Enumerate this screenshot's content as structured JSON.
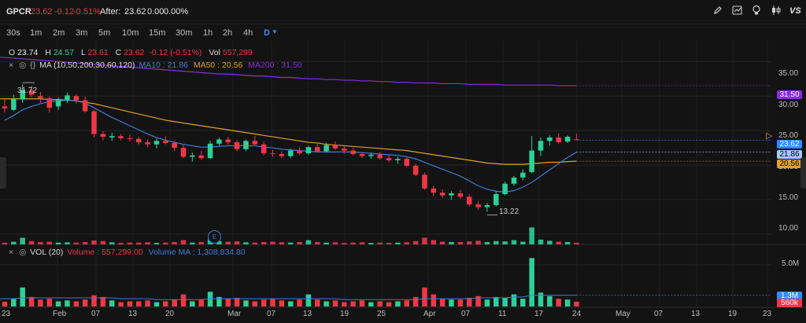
{
  "header": {
    "ticker": "GPCR",
    "last": "23.62",
    "change": "-0.12",
    "change_pct": "-0.51%",
    "after_label": "After:",
    "after_price": "23.62",
    "after_change": "0.00",
    "after_pct": "0.00%"
  },
  "toolbar_icons": [
    "pencil-icon",
    "chart-icon",
    "bulb-icon",
    "candle-icon",
    "vs-icon"
  ],
  "vs_label": "VS",
  "timeframes": [
    "30s",
    "1m",
    "2m",
    "3m",
    "5m",
    "10m",
    "15m",
    "30m",
    "1h",
    "2h",
    "4h",
    "D"
  ],
  "active_timeframe": "D",
  "ohlc": {
    "o_label": "O",
    "o": "23.74",
    "h_label": "H",
    "h": "24.57",
    "l_label": "L",
    "l": "23.61",
    "c_label": "C",
    "c": "23.62",
    "chg": "-0.12 (-0.51%)",
    "vol_label": "Vol",
    "vol": "557,299"
  },
  "ma_legend": {
    "label": "MA (10,50,200,30,60,120)",
    "ma10": "MA10 : 21.86",
    "ma50": "MA50 : 20.56",
    "ma200": "MA200 : 31.50"
  },
  "vol_legend": {
    "label": "VOL (20)",
    "volume": "Volume : 557,299.00",
    "volume_ma": "Volume MA : 1,308,834.80"
  },
  "price_axis": [
    "35.00",
    "30.00",
    "25.00",
    "20.00",
    "15.00",
    "10.00"
  ],
  "price_tags": {
    "ma200": "31.50",
    "last": "23.62",
    "ma10": "21.86",
    "ma50": "20.56"
  },
  "vol_axis": [
    "5.0M"
  ],
  "vol_tags": {
    "ma": "1.3M",
    "vol": "560k"
  },
  "annotations": {
    "high": "31.72",
    "low": "13.22",
    "earnings": "E"
  },
  "x_axis": [
    "23",
    "Feb",
    "07",
    "13",
    "20",
    "Mar",
    "07",
    "13",
    "19",
    "25",
    "Apr",
    "07",
    "11",
    "17",
    "24",
    "May",
    "07",
    "13",
    "19",
    "23"
  ],
  "colors": {
    "up": "#2bd19a",
    "down": "#f23645",
    "ma10": "#3d7bd9",
    "ma50": "#e0a02a",
    "ma200": "#8a2be2",
    "accent": "#2e8cff"
  },
  "chart_data": {
    "type": "candlestick",
    "x_dates": [
      "Jan-23",
      "Jan-24",
      "Jan-27",
      "Jan-28",
      "Jan-29",
      "Jan-30",
      "Jan-31",
      "Feb-03",
      "Feb-04",
      "Feb-05",
      "Feb-06",
      "Feb-07",
      "Feb-10",
      "Feb-11",
      "Feb-12",
      "Feb-13",
      "Feb-14",
      "Feb-18",
      "Feb-19",
      "Feb-20",
      "Feb-21",
      "Feb-24",
      "Feb-25",
      "Feb-26",
      "Feb-27",
      "Feb-28",
      "Mar-03",
      "Mar-04",
      "Mar-05",
      "Mar-06",
      "Mar-07",
      "Mar-10",
      "Mar-11",
      "Mar-12",
      "Mar-13",
      "Mar-14",
      "Mar-17",
      "Mar-18",
      "Mar-19",
      "Mar-20",
      "Mar-21",
      "Mar-24",
      "Mar-25",
      "Mar-26",
      "Mar-27",
      "Mar-28",
      "Mar-31",
      "Apr-01",
      "Apr-02",
      "Apr-03",
      "Apr-04",
      "Apr-07",
      "Apr-08",
      "Apr-09",
      "Apr-10",
      "Apr-11",
      "Apr-14",
      "Apr-15",
      "Apr-16",
      "Apr-17",
      "Apr-21",
      "Apr-22",
      "Apr-23",
      "Apr-24",
      "Apr-25"
    ],
    "ohlc": [
      [
        28.5,
        29.5,
        27.6,
        28.2
      ],
      [
        28.0,
        30.2,
        27.8,
        29.6
      ],
      [
        29.5,
        31.72,
        29.0,
        30.9
      ],
      [
        30.8,
        31.5,
        29.8,
        30.2
      ],
      [
        30.0,
        30.6,
        29.0,
        29.7
      ],
      [
        29.7,
        29.9,
        27.6,
        28.3
      ],
      [
        28.5,
        29.8,
        28.0,
        29.4
      ],
      [
        29.4,
        30.5,
        29.0,
        30.1
      ],
      [
        30.0,
        30.3,
        28.9,
        29.4
      ],
      [
        29.4,
        29.9,
        27.6,
        27.8
      ],
      [
        27.8,
        28.0,
        24.0,
        24.5
      ],
      [
        24.5,
        24.9,
        23.6,
        24.1
      ],
      [
        24.0,
        24.7,
        23.5,
        24.2
      ],
      [
        24.2,
        24.5,
        23.6,
        23.9
      ],
      [
        23.9,
        24.4,
        23.4,
        23.8
      ],
      [
        23.8,
        24.1,
        23.0,
        23.3
      ],
      [
        23.3,
        23.7,
        22.6,
        23.0
      ],
      [
        23.0,
        23.9,
        22.4,
        23.5
      ],
      [
        23.5,
        24.2,
        23.0,
        23.2
      ],
      [
        23.2,
        23.5,
        22.0,
        22.5
      ],
      [
        22.5,
        23.0,
        21.0,
        21.2
      ],
      [
        21.2,
        21.8,
        20.5,
        21.4
      ],
      [
        21.4,
        22.1,
        20.8,
        21.0
      ],
      [
        21.0,
        23.5,
        20.9,
        23.1
      ],
      [
        23.1,
        24.0,
        22.8,
        23.7
      ],
      [
        23.7,
        24.1,
        23.0,
        23.3
      ],
      [
        23.3,
        23.6,
        22.0,
        22.3
      ],
      [
        22.3,
        23.7,
        22.0,
        23.5
      ],
      [
        23.5,
        24.2,
        22.9,
        23.0
      ],
      [
        23.0,
        23.4,
        21.4,
        21.7
      ],
      [
        21.7,
        22.2,
        21.2,
        21.6
      ],
      [
        21.6,
        22.0,
        21.0,
        21.3
      ],
      [
        21.3,
        22.4,
        21.0,
        22.1
      ],
      [
        22.1,
        22.6,
        21.5,
        21.7
      ],
      [
        21.7,
        22.8,
        21.5,
        22.6
      ],
      [
        22.6,
        23.1,
        21.9,
        22.0
      ],
      [
        22.0,
        23.2,
        21.8,
        22.9
      ],
      [
        22.9,
        23.4,
        22.2,
        22.4
      ],
      [
        22.4,
        22.8,
        21.6,
        22.1
      ],
      [
        22.1,
        22.5,
        21.4,
        21.6
      ],
      [
        21.6,
        21.9,
        21.0,
        21.3
      ],
      [
        21.3,
        21.8,
        20.9,
        21.5
      ],
      [
        21.5,
        21.9,
        20.8,
        21.0
      ],
      [
        21.0,
        21.5,
        20.4,
        20.7
      ],
      [
        20.7,
        21.2,
        20.2,
        20.9
      ],
      [
        20.9,
        21.1,
        19.7,
        19.9
      ],
      [
        19.9,
        20.2,
        18.4,
        18.6
      ],
      [
        18.6,
        18.9,
        16.4,
        16.6
      ],
      [
        16.6,
        17.0,
        15.5,
        16.0
      ],
      [
        16.0,
        16.5,
        15.2,
        15.6
      ],
      [
        15.6,
        16.2,
        15.0,
        15.9
      ],
      [
        15.9,
        16.4,
        15.1,
        15.4
      ],
      [
        15.4,
        15.8,
        14.0,
        14.3
      ],
      [
        14.3,
        14.8,
        13.5,
        13.9
      ],
      [
        13.9,
        14.5,
        13.22,
        14.2
      ],
      [
        14.2,
        16.2,
        14.0,
        15.8
      ],
      [
        15.8,
        17.6,
        15.6,
        17.3
      ],
      [
        17.3,
        18.4,
        17.0,
        18.2
      ],
      [
        18.2,
        19.4,
        17.8,
        18.9
      ],
      [
        19.0,
        24.2,
        18.8,
        22.1
      ],
      [
        22.1,
        24.0,
        21.3,
        23.5
      ],
      [
        23.5,
        24.3,
        22.8,
        24.0
      ],
      [
        24.0,
        24.6,
        23.1,
        23.3
      ],
      [
        23.4,
        24.3,
        23.2,
        24.1
      ],
      [
        23.74,
        24.57,
        23.61,
        23.62
      ]
    ],
    "volume_millions": [
      0.55,
      0.9,
      2.2,
      1.1,
      0.8,
      0.9,
      0.6,
      0.7,
      0.6,
      0.8,
      1.3,
      1.1,
      0.7,
      0.5,
      0.6,
      0.6,
      0.7,
      0.5,
      0.6,
      0.8,
      1.4,
      0.6,
      0.8,
      1.7,
      1.1,
      0.9,
      1.0,
      0.7,
      0.6,
      0.8,
      0.9,
      0.7,
      0.6,
      0.8,
      1.4,
      0.8,
      0.6,
      0.7,
      0.5,
      0.6,
      0.7,
      0.5,
      0.6,
      0.5,
      0.6,
      0.7,
      1.1,
      2.2,
      1.4,
      0.9,
      0.8,
      0.8,
      1.0,
      1.2,
      0.8,
      1.1,
      1.0,
      1.4,
      0.9,
      5.6,
      1.6,
      1.2,
      0.9,
      0.8,
      0.56
    ],
    "ma10": [
      26.5,
      27.2,
      28.0,
      28.5,
      28.9,
      29.2,
      29.3,
      29.4,
      29.3,
      29.0,
      28.3,
      27.6,
      26.9,
      26.3,
      25.7,
      25.1,
      24.5,
      24.0,
      23.6,
      23.3,
      23.0,
      22.8,
      22.6,
      22.6,
      22.7,
      22.8,
      22.8,
      22.8,
      22.8,
      22.6,
      22.5,
      22.3,
      22.2,
      22.1,
      22.0,
      21.9,
      21.9,
      21.9,
      21.9,
      21.9,
      21.8,
      21.7,
      21.6,
      21.5,
      21.4,
      21.2,
      20.9,
      20.4,
      19.9,
      19.4,
      18.9,
      18.4,
      17.7,
      17.0,
      16.5,
      16.2,
      16.1,
      16.3,
      16.8,
      17.5,
      18.4,
      19.3,
      20.2,
      21.1,
      21.86
    ],
    "ma50": [
      29.6,
      29.6,
      29.6,
      29.6,
      29.6,
      29.5,
      29.5,
      29.4,
      29.3,
      29.1,
      28.9,
      28.6,
      28.3,
      28.0,
      27.7,
      27.4,
      27.1,
      26.8,
      26.5,
      26.3,
      26.1,
      25.9,
      25.7,
      25.5,
      25.3,
      25.1,
      24.9,
      24.7,
      24.5,
      24.3,
      24.1,
      23.9,
      23.7,
      23.5,
      23.3,
      23.2,
      23.0,
      22.9,
      22.8,
      22.7,
      22.6,
      22.5,
      22.4,
      22.3,
      22.2,
      22.1,
      21.9,
      21.7,
      21.5,
      21.3,
      21.1,
      20.9,
      20.7,
      20.5,
      20.3,
      20.2,
      20.1,
      20.1,
      20.1,
      20.2,
      20.3,
      20.4,
      20.4,
      20.5,
      20.56
    ],
    "ma200": [
      35.6,
      35.5,
      35.4,
      35.3,
      35.2,
      35.1,
      35.0,
      34.9,
      34.8,
      34.7,
      34.6,
      34.5,
      34.4,
      34.3,
      34.2,
      34.1,
      34.0,
      33.9,
      33.8,
      33.7,
      33.6,
      33.5,
      33.4,
      33.3,
      33.2,
      33.2,
      33.1,
      33.0,
      32.9,
      32.9,
      32.8,
      32.7,
      32.7,
      32.6,
      32.5,
      32.5,
      32.4,
      32.4,
      32.3,
      32.3,
      32.2,
      32.2,
      32.1,
      32.1,
      32.0,
      32.0,
      31.9,
      31.9,
      31.9,
      31.8,
      31.8,
      31.8,
      31.7,
      31.7,
      31.7,
      31.7,
      31.6,
      31.6,
      31.6,
      31.6,
      31.6,
      31.6,
      31.5,
      31.5,
      31.5
    ],
    "volume_ma_millions": [
      0.9,
      0.9,
      1.0,
      1.0,
      1.0,
      1.0,
      1.0,
      1.0,
      1.0,
      1.0,
      1.0,
      1.0,
      1.0,
      0.9,
      0.9,
      0.9,
      0.9,
      0.8,
      0.8,
      0.8,
      0.8,
      0.8,
      0.8,
      0.9,
      0.9,
      0.9,
      0.9,
      0.9,
      0.9,
      0.9,
      0.9,
      0.9,
      0.9,
      0.9,
      0.9,
      0.9,
      0.9,
      0.9,
      0.8,
      0.8,
      0.8,
      0.8,
      0.8,
      0.8,
      0.8,
      0.8,
      0.8,
      0.9,
      0.9,
      0.9,
      0.9,
      0.9,
      0.9,
      1.0,
      1.0,
      1.0,
      1.0,
      1.1,
      1.1,
      1.3,
      1.3,
      1.3,
      1.3,
      1.3,
      1.31
    ],
    "price_range": [
      8.5,
      38.0
    ],
    "volume_range_millions": [
      0,
      6.0
    ]
  }
}
